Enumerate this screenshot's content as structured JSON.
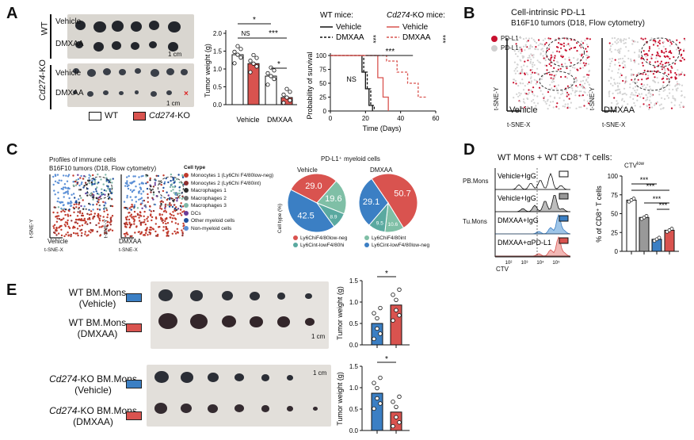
{
  "panelA": {
    "letter": "A",
    "wt_label": "WT",
    "ko_label": "Cd274",
    "ko_suffix": "-KO",
    "vehicle": "Vehicle",
    "dmxaa": "DMXAA",
    "scale": "1 cm",
    "red_x": "×",
    "legend_wt": "WT",
    "legend_ko": "Cd274",
    "legend_ko_suffix": "-KO",
    "bar_ylabel": "Tumor weight (g)",
    "bar_yticks": [
      "0.0",
      "0.5",
      "1.0",
      "1.5",
      "2.0"
    ],
    "bar_xticks": [
      "Vehicle",
      "DMXAA"
    ],
    "sig_top": "*",
    "sig_ns": "NS",
    "sig_mid": "***",
    "sig_low": "*",
    "surv_title_wt": "WT mice:",
    "surv_title_ko": "Cd274",
    "surv_title_ko_suffix": "-KO mice:",
    "surv_leg_v": "Vehicle",
    "surv_leg_d": "DMXAA",
    "surv_stars": "***",
    "surv_ns": "NS",
    "surv_ylabel": "Probability of survival",
    "surv_xlabel": "Time (Days)",
    "surv_yticks": [
      "0",
      "25",
      "50",
      "75",
      "100"
    ],
    "surv_xticks": [
      "0",
      "20",
      "40",
      "60"
    ]
  },
  "panelB": {
    "letter": "B",
    "title1": "Cell-intrinsic PD-L1",
    "title2": "B16F10 tumors (D18, Flow cytometry)",
    "leg_pos": "PD-L1⁺",
    "leg_neg": "PD-L1⁻",
    "veh": "Vehicle",
    "dmx": "DMXAA",
    "tsne_y": "t-SNE-Y",
    "tsne_x": "t-SNE-X"
  },
  "panelC": {
    "letter": "C",
    "title1": "Profiles of immune cells",
    "title2": "B16F10 tumors (D18, Flow cytometry)",
    "celltype": "Cell type",
    "types": [
      {
        "label": "Monocytes 1 (Ly6Chi F4/80low-neg)",
        "color": "#c0392b"
      },
      {
        "label": "Monocytes 2 (Ly6Chi F4/80int)",
        "color": "#8e2f2f"
      },
      {
        "label": "Macrophages 1",
        "color": "#2c2c2c"
      },
      {
        "label": "Macrophages 2",
        "color": "#6b6b6b"
      },
      {
        "label": "Macrophages 3",
        "color": "#7fb7a6"
      },
      {
        "label": "DCs",
        "color": "#6a3d9a"
      },
      {
        "label": "Other myeloid cells",
        "color": "#1f4e9a"
      },
      {
        "label": "Non-myeloid cells",
        "color": "#5b8fd6"
      }
    ],
    "veh": "Vehicle",
    "dmx": "DMXAA",
    "tsne_y": "t-SNE-Y",
    "tsne_x": "t-SNE-X",
    "pie_title": "PD-L1⁺ myeloid cells",
    "pie_veh": "Vehicle",
    "pie_dmx": "DMXAA",
    "pie_ylabel": "Cell type (%)",
    "pie_leg": [
      "Ly6ChiF4/80low-neg",
      "Ly6ChiF4/80int",
      "Ly6Cint-lowF4/80hi",
      "Ly6Cint-lowF4/80low-neg"
    ]
  },
  "panelD": {
    "letter": "D",
    "title": "WT Mons + WT CD8⁺ T cells:",
    "pb": "PB.Mons",
    "tu": "Tu.Mons",
    "rows": [
      "Vehicle+IgG",
      "Vehicle+IgG",
      "DMXAA+IgG",
      "DMXAA+αPD-L1"
    ],
    "ctv": "CTV",
    "ctv_low": "CTVlow",
    "ylabel": "% of CD8⁺ T cells",
    "yticks": [
      "0",
      "25",
      "50",
      "75",
      "100"
    ],
    "stars": "***",
    "xticks": [
      "10²",
      "10³",
      "10⁴",
      "10⁵"
    ]
  },
  "panelE": {
    "letter": "E",
    "g1": "WT BM.Mons",
    "g1b": "(Vehicle)",
    "g2": "WT BM.Mons",
    "g2b": "(DMXAA)",
    "g3": "Cd274",
    "g3s": "-KO BM.Mons",
    "g3b": "(Vehicle)",
    "g4": "Cd274",
    "g4s": "-KO BM.Mons",
    "g4b": "(DMXAA)",
    "scale": "1 cm",
    "ylabel": "Tumor weight (g)",
    "yticks1": [
      "0.0",
      "0.5",
      "1.0",
      "1.5"
    ],
    "yticks2": [
      "0.0",
      "0.5",
      "1.0",
      "1.5"
    ],
    "star": "*"
  },
  "chart_data": [
    {
      "type": "bar",
      "panel": "A",
      "categories": [
        "WT Vehicle",
        "Cd274-KO Vehicle",
        "WT DMXAA",
        "Cd274-KO DMXAA"
      ],
      "values": [
        1.4,
        1.15,
        0.8,
        0.2
      ],
      "ylabel": "Tumor weight (g)",
      "ylim": [
        0,
        2.0
      ]
    },
    {
      "type": "line",
      "panel": "A",
      "xlabel": "Time (Days)",
      "ylabel": "Probability of survival",
      "ylim": [
        0,
        100
      ],
      "xlim": [
        0,
        60
      ],
      "series": [
        {
          "name": "WT Vehicle",
          "x": [
            0,
            15,
            18,
            20,
            22,
            24
          ],
          "y": [
            100,
            100,
            70,
            40,
            10,
            0
          ]
        },
        {
          "name": "WT DMXAA",
          "x": [
            0,
            16,
            19,
            21,
            23,
            25
          ],
          "y": [
            100,
            100,
            70,
            40,
            10,
            0
          ]
        },
        {
          "name": "KO Vehicle",
          "x": [
            0,
            24,
            27,
            30,
            33
          ],
          "y": [
            100,
            100,
            60,
            25,
            0
          ]
        },
        {
          "name": "KO DMXAA",
          "x": [
            0,
            32,
            38,
            44,
            50,
            55
          ],
          "y": [
            100,
            90,
            70,
            50,
            25,
            25
          ]
        }
      ]
    },
    {
      "type": "pie",
      "panel": "C",
      "name": "Vehicle",
      "values": [
        29.0,
        19.6,
        8.9,
        42.5
      ]
    },
    {
      "type": "pie",
      "panel": "C",
      "name": "DMXAA",
      "values": [
        50.7,
        10.6,
        9.5,
        29.1
      ]
    },
    {
      "type": "bar",
      "panel": "D",
      "categories": [
        "PB Vehicle+IgG",
        "Tu Vehicle+IgG",
        "Tu DMXAA+IgG",
        "Tu DMXAA+αPD-L1"
      ],
      "values": [
        68,
        45,
        16,
        28
      ],
      "ylabel": "% of CD8⁺ T cells",
      "ylim": [
        0,
        100
      ]
    },
    {
      "type": "bar",
      "panel": "E1",
      "categories": [
        "WT Vehicle",
        "WT DMXAA"
      ],
      "values": [
        0.5,
        0.93
      ],
      "ylim": [
        0,
        1.5
      ]
    },
    {
      "type": "bar",
      "panel": "E2",
      "categories": [
        "KO Vehicle",
        "KO DMXAA"
      ],
      "values": [
        0.87,
        0.43
      ],
      "ylim": [
        0,
        1.5
      ]
    }
  ]
}
